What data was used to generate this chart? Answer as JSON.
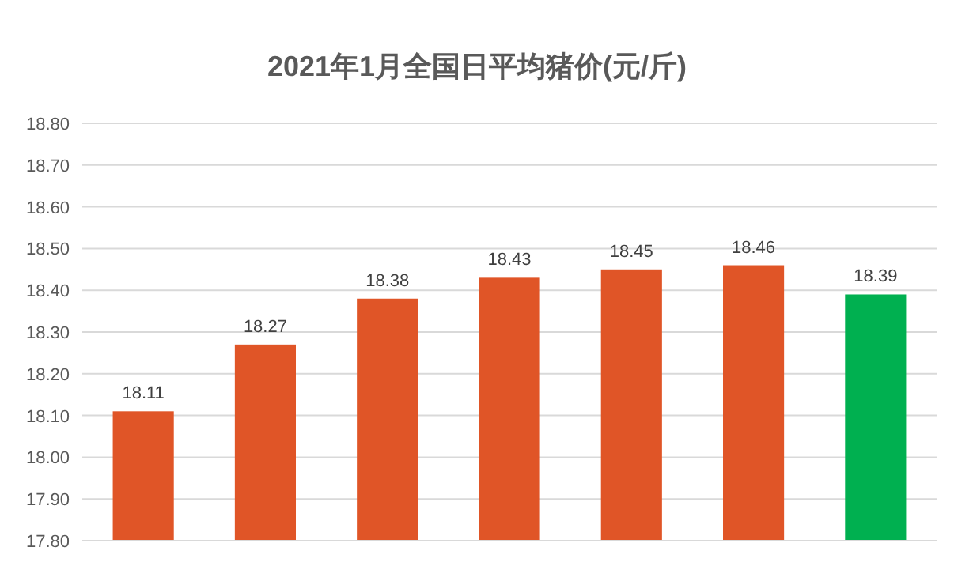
{
  "chart_data": {
    "type": "bar",
    "title": "2021年1月全国日平均猪价(元/斤)",
    "categories": [
      null,
      null,
      null,
      null,
      null,
      null,
      null
    ],
    "values": [
      18.11,
      18.27,
      18.38,
      18.43,
      18.45,
      18.46,
      18.39
    ],
    "colors": [
      "#e05527",
      "#e05527",
      "#e05527",
      "#e05527",
      "#e05527",
      "#e05527",
      "#00b050"
    ],
    "ylim": [
      17.8,
      18.8
    ],
    "yticks": [
      {
        "value": 17.8,
        "label": "17.80"
      },
      {
        "value": 17.9,
        "label": "17.90"
      },
      {
        "value": 18.0,
        "label": "18.00"
      },
      {
        "value": 18.1,
        "label": "18.10"
      },
      {
        "value": 18.2,
        "label": "18.20"
      },
      {
        "value": 18.3,
        "label": "18.30"
      },
      {
        "value": 18.4,
        "label": "18.40"
      },
      {
        "value": 18.5,
        "label": "18.50"
      },
      {
        "value": 18.6,
        "label": "18.60"
      },
      {
        "value": 18.7,
        "label": "18.70"
      },
      {
        "value": 18.8,
        "label": "18.80"
      }
    ],
    "grid": "y",
    "data_labels": true
  }
}
